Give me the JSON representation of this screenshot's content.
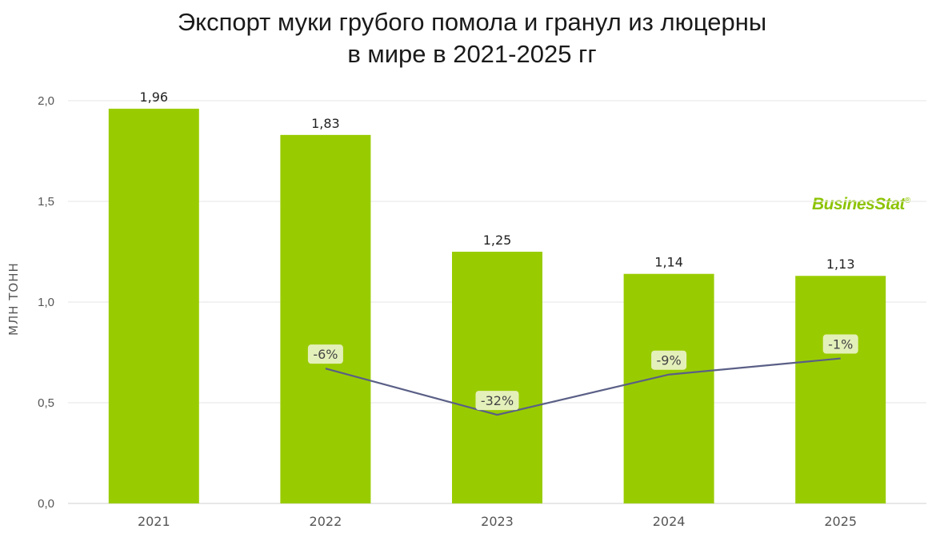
{
  "title_line1": "Экспорт муки грубого помола и гранул из люцерны",
  "title_line2": "в мире в 2021-2025 гг",
  "brand": "BusinesStat",
  "brand_mark": "®",
  "colors": {
    "bar": "#99cc00",
    "line": "#5a5f86",
    "grid": "#e6e6e6",
    "pct_label_bg": "#e8f1c4"
  },
  "chart_data": {
    "type": "bar",
    "title": "Экспорт муки грубого помола и гранул из люцерны в мире в 2021-2025 гг",
    "xlabel": "",
    "ylabel": "МЛН ТОНН",
    "categories": [
      "2021",
      "2022",
      "2023",
      "2024",
      "2025"
    ],
    "values": [
      1.96,
      1.83,
      1.25,
      1.14,
      1.13
    ],
    "value_labels": [
      "1,96",
      "1,83",
      "1,25",
      "1,14",
      "1,13"
    ],
    "ylim": [
      0,
      2.0
    ],
    "yticks": [
      0.0,
      0.5,
      1.0,
      1.5,
      2.0
    ],
    "ytick_labels": [
      "0,0",
      "0,5",
      "1,0",
      "1,5",
      "2,0"
    ],
    "grid": true,
    "growth_line": {
      "categories": [
        "2022",
        "2023",
        "2024",
        "2025"
      ],
      "labels": [
        "-6%",
        "-32%",
        "-9%",
        "-1%"
      ],
      "y_positions": [
        0.67,
        0.44,
        0.64,
        0.72
      ]
    }
  }
}
